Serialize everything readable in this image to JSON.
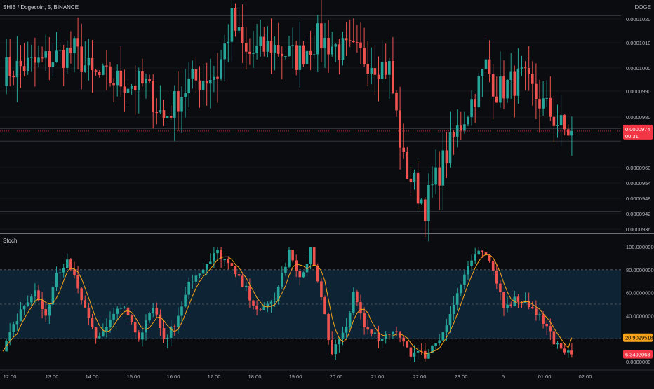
{
  "header": {
    "symbol_title": "SHIB / Dogecoin, 5, BINANCE",
    "quote_currency": "DOGE"
  },
  "indicator": {
    "name": "Stoch"
  },
  "price_panel": {
    "y_ticks": [
      "0.0001020",
      "0.0001010",
      "0.0001000",
      "0.0000990",
      "0.0000980",
      "0.0000960",
      "0.0000954",
      "0.0000948",
      "0.0000942",
      "0.0000936"
    ],
    "last_price": "0.0000974",
    "countdown": "00:31",
    "last_price_color": "#f23645",
    "horizontal_levels": [
      0.000102,
      9.75e-05,
      9.7e-05,
      9.42e-05
    ]
  },
  "stoch_panel": {
    "y_ticks": [
      "100.0000000",
      "80.0000000",
      "60.0000000",
      "40.0000000",
      "0.0000000"
    ],
    "band_upper": 80,
    "band_middle": 50,
    "band_lower": 20,
    "k_value": "6.3492063",
    "d_value": "20.9029518",
    "k_color": "#f23645",
    "d_color": "#f7a21b"
  },
  "x_axis": {
    "ticks": [
      "12:00",
      "13:00",
      "14:00",
      "15:00",
      "16:00",
      "17:00",
      "18:00",
      "19:00",
      "20:00",
      "21:00",
      "22:00",
      "23:00",
      "5",
      "01:00",
      "02:00"
    ]
  },
  "colors": {
    "up": "#26a69a",
    "down": "#ef5350",
    "background": "#0b0c0f",
    "band_fill": "#0e2333"
  },
  "chart_data": [
    {
      "type": "candlestick",
      "title": "SHIB / Dogecoin, 5, BINANCE",
      "ylim": [
        9.34e-05,
        0.0001024
      ],
      "x_label_sequence": [
        "12:00",
        "13:00",
        "14:00",
        "15:00",
        "16:00",
        "17:00",
        "18:00",
        "19:00",
        "20:00",
        "21:00",
        "22:00",
        "23:00",
        "5",
        "01:00",
        "02:00"
      ],
      "close_anchors": [
        [
          0,
          9.98e-05
        ],
        [
          10,
          0.0001001
        ],
        [
          20,
          0.0001006
        ],
        [
          25,
          9.96e-05
        ],
        [
          32,
          9.94e-05
        ],
        [
          40,
          9.92e-05
        ],
        [
          45,
          9.79e-05
        ],
        [
          52,
          9.93e-05
        ],
        [
          60,
          9.97e-05
        ],
        [
          64,
          0.0001018
        ],
        [
          68,
          0.0001004
        ],
        [
          75,
          0.0001008
        ],
        [
          82,
          0.0001003
        ],
        [
          88,
          0.0001011
        ],
        [
          95,
          0.0001006
        ],
        [
          100,
          0.0001004
        ],
        [
          108,
          9.99e-05
        ],
        [
          112,
          9.61e-05
        ],
        [
          118,
          9.44e-05
        ],
        [
          124,
          9.65e-05
        ],
        [
          128,
          9.77e-05
        ],
        [
          132,
          9.89e-05
        ],
        [
          135,
          0.0001
        ],
        [
          138,
          9.9e-05
        ],
        [
          145,
          9.95e-05
        ],
        [
          150,
          9.86e-05
        ],
        [
          157,
          9.74e-05
        ]
      ],
      "last_close": 9.74e-05
    },
    {
      "type": "line",
      "title": "Stoch",
      "ylim": [
        0,
        100
      ],
      "k_anchors": [
        [
          0,
          8
        ],
        [
          5,
          45
        ],
        [
          9,
          60
        ],
        [
          12,
          40
        ],
        [
          15,
          75
        ],
        [
          18,
          88
        ],
        [
          22,
          55
        ],
        [
          26,
          20
        ],
        [
          30,
          38
        ],
        [
          34,
          48
        ],
        [
          38,
          22
        ],
        [
          42,
          50
        ],
        [
          45,
          20
        ],
        [
          48,
          32
        ],
        [
          52,
          70
        ],
        [
          56,
          78
        ],
        [
          60,
          96
        ],
        [
          64,
          80
        ],
        [
          68,
          62
        ],
        [
          72,
          42
        ],
        [
          76,
          55
        ],
        [
          80,
          95
        ],
        [
          83,
          70
        ],
        [
          86,
          98
        ],
        [
          90,
          40
        ],
        [
          92,
          5
        ],
        [
          96,
          30
        ],
        [
          98,
          60
        ],
        [
          102,
          25
        ],
        [
          106,
          18
        ],
        [
          110,
          28
        ],
        [
          114,
          8
        ],
        [
          118,
          6
        ],
        [
          122,
          20
        ],
        [
          126,
          50
        ],
        [
          130,
          84
        ],
        [
          134,
          96
        ],
        [
          137,
          78
        ],
        [
          140,
          50
        ],
        [
          144,
          55
        ],
        [
          148,
          48
        ],
        [
          152,
          30
        ],
        [
          156,
          8
        ],
        [
          157,
          6
        ]
      ],
      "k_last": 6.3492063,
      "d_last": 20.9029518
    }
  ]
}
